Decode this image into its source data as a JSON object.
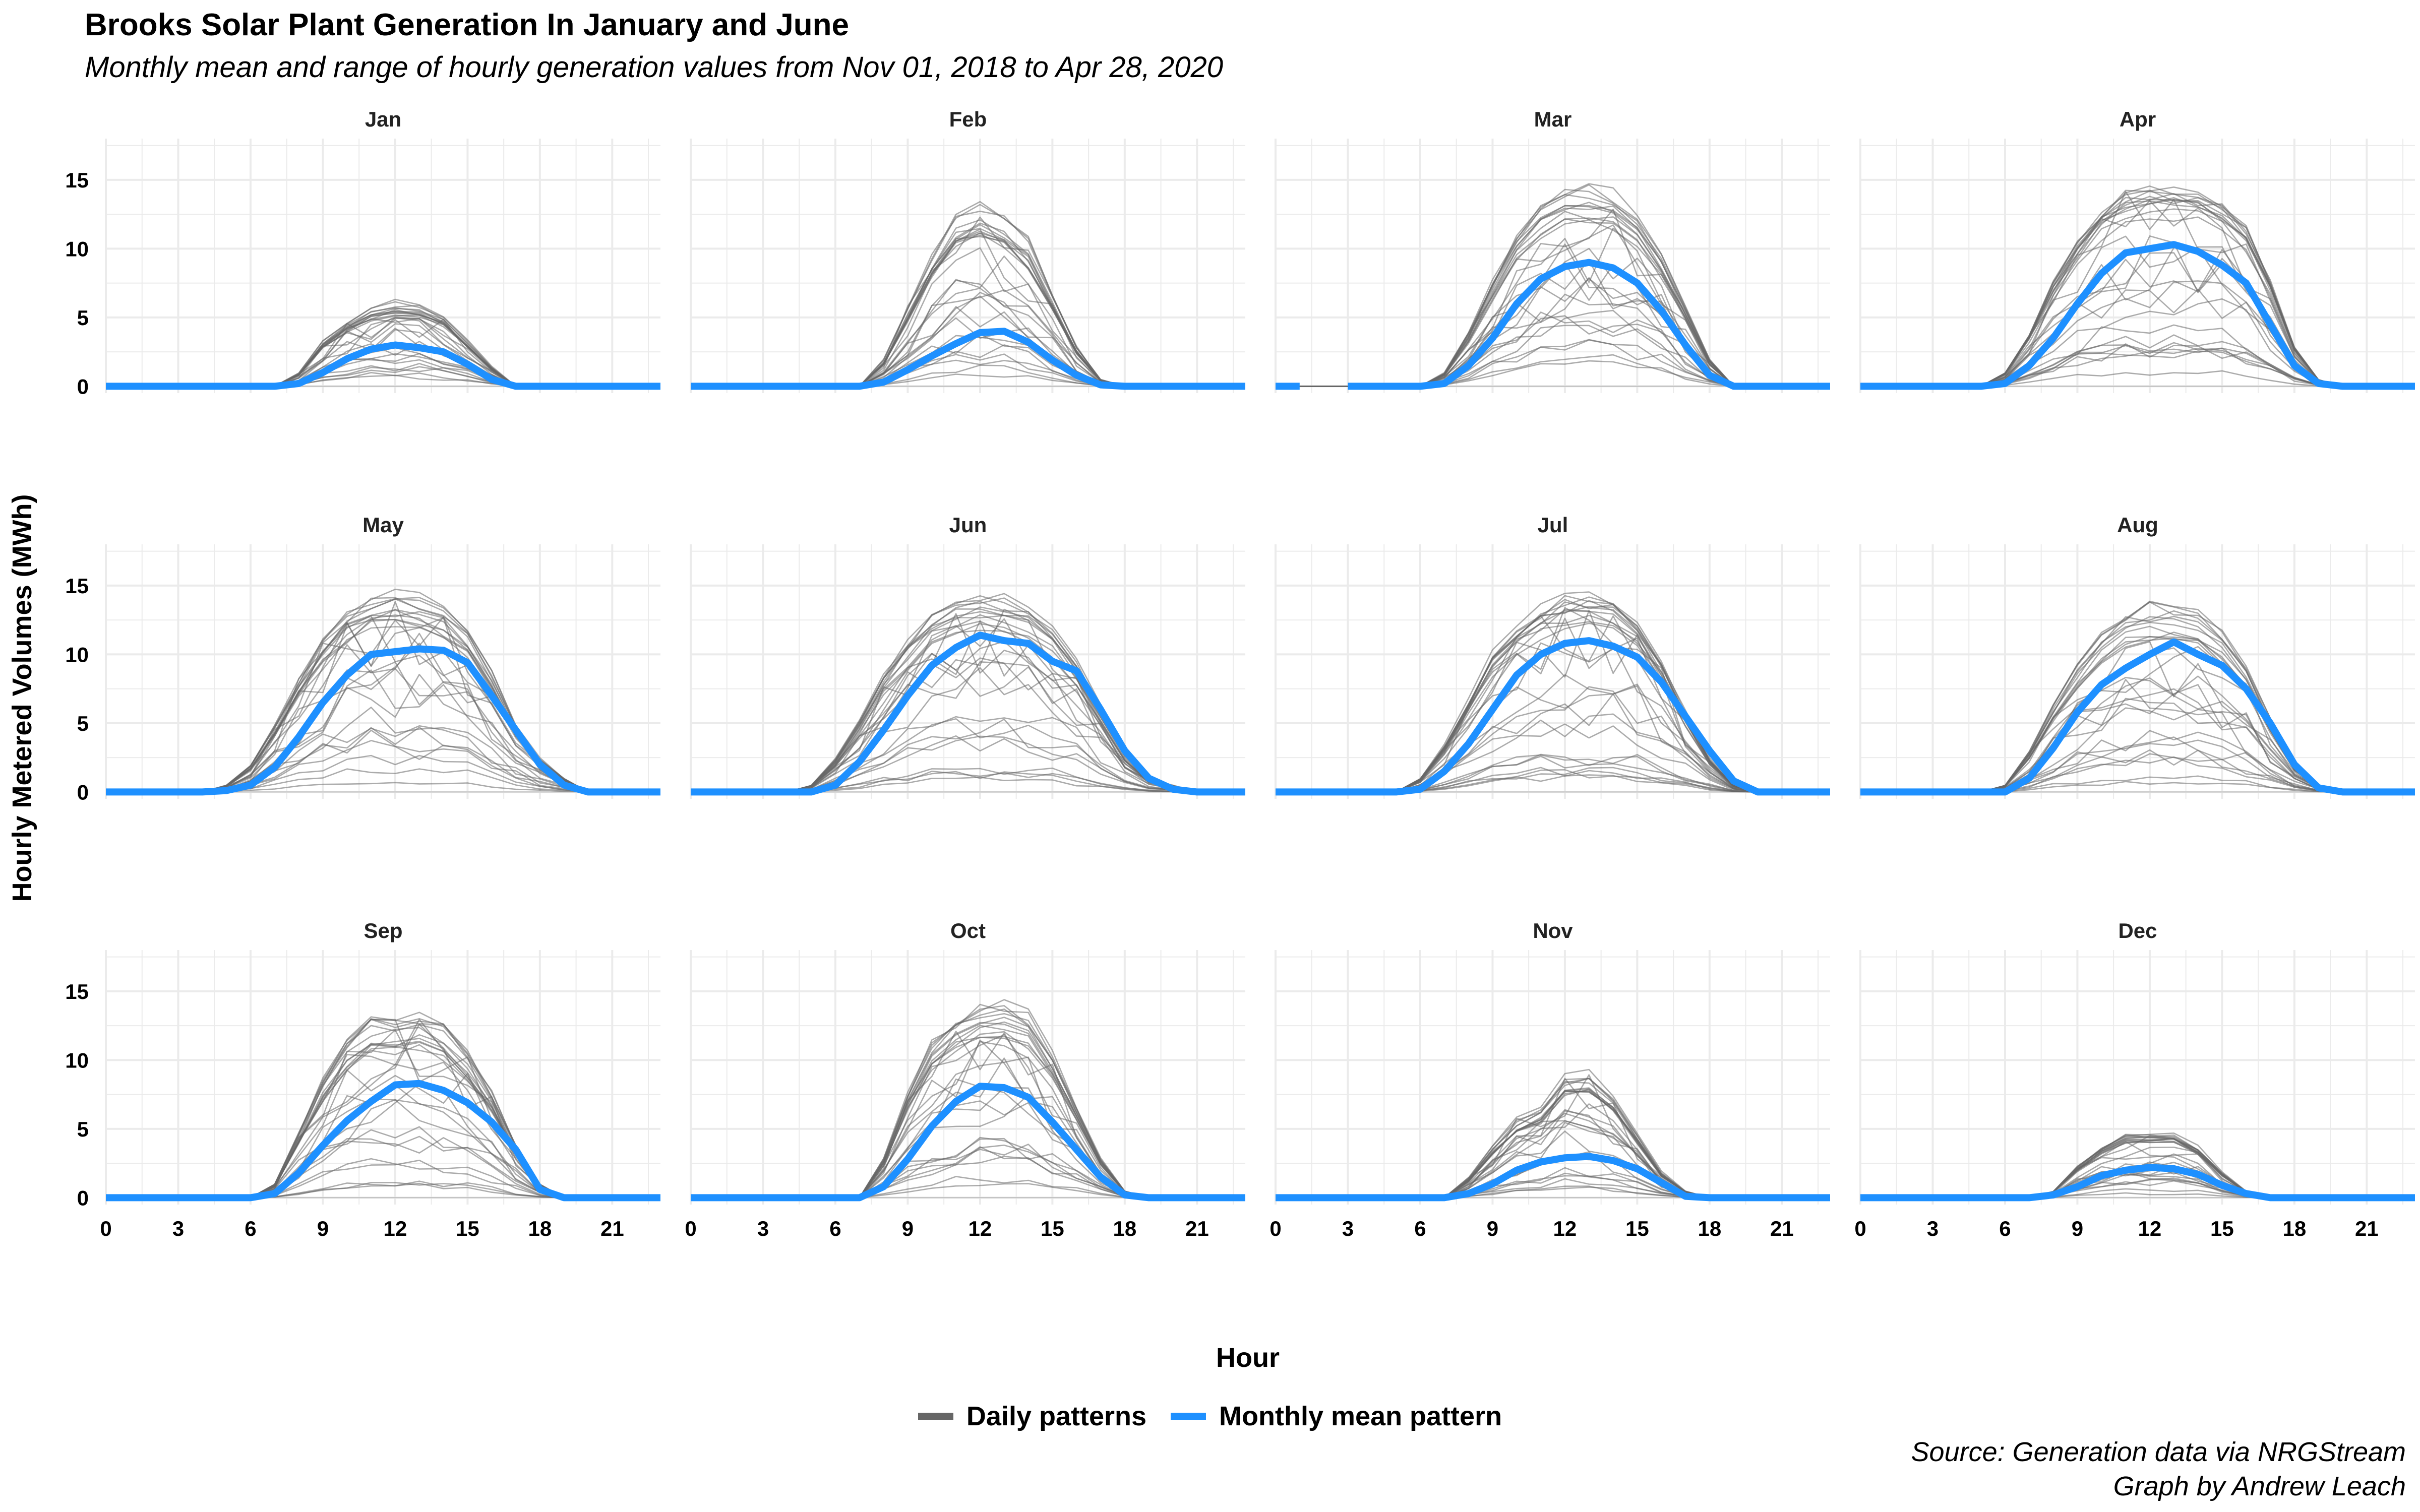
{
  "title": "Brooks Solar Plant Generation In January and June",
  "subtitle": "Monthly mean and range of hourly generation values from Nov 01, 2018 to Apr 28, 2020",
  "caption": [
    "Source: Generation data via NRGStream",
    "Graph by Andrew Leach"
  ],
  "colors": {
    "daily": "#666666",
    "mean": "#1e90ff",
    "grid": "#ebebeb",
    "zero": "#bbbbbb"
  },
  "legend": [
    {
      "label": "Daily patterns",
      "color": "#666666"
    },
    {
      "label": "Monthly mean pattern",
      "color": "#1e90ff"
    }
  ],
  "chart_data": {
    "type": "line",
    "facets": "3x4 small multiples, shared axes",
    "xlabel": "Hour",
    "ylabel": "Hourly Metered Volumes (MWh)",
    "xlim": [
      0,
      23
    ],
    "ylim": [
      -0.5,
      18
    ],
    "xticks": [
      0,
      3,
      6,
      9,
      12,
      15,
      18,
      21
    ],
    "yticks": [
      0,
      5,
      10,
      15
    ],
    "grid": true,
    "legend_position": "bottom",
    "x": [
      0,
      1,
      2,
      3,
      4,
      5,
      6,
      7,
      8,
      9,
      10,
      11,
      12,
      13,
      14,
      15,
      16,
      17,
      18,
      19,
      20,
      21,
      22,
      23
    ],
    "panels": [
      {
        "month": "Jan",
        "mean": [
          0,
          0,
          0,
          0,
          0,
          0,
          0,
          0,
          0.2,
          1,
          2,
          2.7,
          3,
          2.8,
          2.5,
          1.6,
          0.5,
          0,
          0,
          0,
          0,
          0,
          0,
          0
        ],
        "daily_max": [
          0,
          0,
          0,
          0,
          0,
          0,
          0,
          0,
          1,
          3.5,
          5,
          6,
          6.5,
          6.3,
          5.5,
          3.5,
          1.5,
          0,
          0,
          0,
          0,
          0,
          0,
          0
        ]
      },
      {
        "month": "Feb",
        "mean": [
          0,
          0,
          0,
          0,
          0,
          0,
          0,
          0,
          0.3,
          1.2,
          2.2,
          3.1,
          3.9,
          4,
          3.2,
          1.9,
          0.8,
          0.1,
          0,
          0,
          0,
          0,
          0,
          0
        ],
        "daily_max": [
          0,
          0,
          0,
          0,
          0,
          0,
          0,
          0,
          2,
          6,
          10,
          13,
          13.8,
          13,
          11,
          7,
          3,
          0.5,
          0,
          0,
          0,
          0,
          0,
          0
        ]
      },
      {
        "month": "Mar",
        "mean": [
          0,
          0,
          0,
          0,
          0,
          0,
          0,
          0.2,
          1.5,
          3.5,
          6,
          7.8,
          8.7,
          9,
          8.6,
          7.5,
          5.5,
          3,
          0.8,
          0,
          0,
          0,
          0,
          0
        ],
        "daily_max": [
          0,
          0,
          0,
          0,
          0,
          0,
          0,
          1,
          4,
          8,
          11.5,
          14,
          14.9,
          15,
          14.5,
          13,
          10,
          6,
          2,
          0,
          0,
          0,
          0,
          0
        ],
        "gap": [
          1,
          3
        ]
      },
      {
        "month": "Apr",
        "mean": [
          0,
          0,
          0,
          0,
          0,
          0,
          0.2,
          1.5,
          3.5,
          6,
          8.2,
          9.7,
          10,
          10.3,
          9.8,
          8.8,
          7.5,
          4.5,
          1.5,
          0.2,
          0,
          0,
          0,
          0
        ],
        "daily_max": [
          0,
          0,
          0,
          0,
          0,
          0,
          1,
          4,
          8,
          11,
          13.5,
          14.8,
          15,
          15,
          14.8,
          14,
          12,
          8,
          3,
          0.5,
          0,
          0,
          0,
          0
        ]
      },
      {
        "month": "May",
        "mean": [
          0,
          0,
          0,
          0,
          0,
          0.1,
          0.5,
          1.8,
          4,
          6.5,
          8.5,
          10,
          10.2,
          10.4,
          10.3,
          9.4,
          7,
          4.5,
          2,
          0.5,
          0,
          0,
          0,
          0
        ],
        "daily_max": [
          0,
          0,
          0,
          0,
          0,
          0.5,
          2,
          5,
          8.5,
          11.5,
          13.5,
          14.7,
          15,
          14.8,
          14,
          12,
          9,
          5,
          2.5,
          1,
          0,
          0,
          0,
          0
        ]
      },
      {
        "month": "Jun",
        "mean": [
          0,
          0,
          0,
          0,
          0,
          0,
          0.5,
          2.2,
          4.5,
          7,
          9.2,
          10.5,
          11.4,
          11,
          10.8,
          9.5,
          8.8,
          6,
          3,
          1,
          0.2,
          0,
          0,
          0
        ],
        "daily_max": [
          0,
          0,
          0,
          0,
          0,
          0.5,
          2.5,
          5.5,
          9,
          11.5,
          13.5,
          14.7,
          15,
          14.7,
          14,
          12.5,
          10,
          6.5,
          3,
          1,
          0.5,
          0,
          0,
          0
        ]
      },
      {
        "month": "Jul",
        "mean": [
          0,
          0,
          0,
          0,
          0,
          0,
          0.2,
          1.5,
          3.5,
          6,
          8.5,
          10,
          10.8,
          11,
          10.6,
          9.8,
          8,
          5.5,
          3,
          0.8,
          0,
          0,
          0,
          0
        ],
        "daily_max": [
          0,
          0,
          0,
          0,
          0,
          0,
          1,
          3.5,
          7,
          10.5,
          12.5,
          14,
          14.8,
          15,
          14.5,
          13,
          10,
          6,
          2.5,
          0.5,
          0,
          0,
          0,
          0
        ]
      },
      {
        "month": "Aug",
        "mean": [
          0,
          0,
          0,
          0,
          0,
          0,
          0,
          1,
          3.2,
          5.8,
          7.8,
          9,
          10,
          10.9,
          10,
          9.2,
          7.5,
          5,
          2,
          0.3,
          0,
          0,
          0,
          0
        ],
        "daily_max": [
          0,
          0,
          0,
          0,
          0,
          0,
          0.5,
          3,
          6.5,
          9.5,
          12,
          13.5,
          14,
          14,
          13.5,
          12,
          9.5,
          5.5,
          2,
          0.5,
          0,
          0,
          0,
          0
        ]
      },
      {
        "month": "Sep",
        "mean": [
          0,
          0,
          0,
          0,
          0,
          0,
          0,
          0.3,
          1.8,
          3.8,
          5.6,
          7,
          8.2,
          8.3,
          7.8,
          6.9,
          5.5,
          3.5,
          0.6,
          0,
          0,
          0,
          0,
          0
        ],
        "daily_max": [
          0,
          0,
          0,
          0,
          0,
          0,
          0,
          1,
          5,
          9,
          12,
          13.5,
          13.5,
          13.8,
          13,
          11,
          8,
          4,
          1,
          0,
          0,
          0,
          0,
          0
        ]
      },
      {
        "month": "Oct",
        "mean": [
          0,
          0,
          0,
          0,
          0,
          0,
          0,
          0,
          0.8,
          2.8,
          5.2,
          7,
          8.1,
          8,
          7.3,
          5.5,
          3.5,
          1.5,
          0.2,
          0,
          0,
          0,
          0,
          0
        ],
        "daily_max": [
          0,
          0,
          0,
          0,
          0,
          0,
          0,
          0,
          3,
          8,
          12,
          13.5,
          14.5,
          14.8,
          14,
          11,
          7,
          3,
          0.5,
          0,
          0,
          0,
          0,
          0
        ]
      },
      {
        "month": "Nov",
        "mean": [
          0,
          0,
          0,
          0,
          0,
          0,
          0,
          0,
          0.3,
          1,
          2,
          2.6,
          2.9,
          3,
          2.7,
          2.1,
          1.1,
          0.1,
          0,
          0,
          0,
          0,
          0,
          0
        ],
        "daily_max": [
          0,
          0,
          0,
          0,
          0,
          0,
          0,
          0,
          1.5,
          4,
          6,
          7,
          9.5,
          9.5,
          8,
          5,
          2,
          0.5,
          0,
          0,
          0,
          0,
          0,
          0
        ]
      },
      {
        "month": "Dec",
        "mean": [
          0,
          0,
          0,
          0,
          0,
          0,
          0,
          0,
          0.2,
          0.8,
          1.6,
          2,
          2.2,
          2.1,
          1.7,
          0.9,
          0.3,
          0,
          0,
          0,
          0,
          0,
          0,
          0
        ],
        "daily_max": [
          0,
          0,
          0,
          0,
          0,
          0,
          0,
          0,
          0.5,
          2.5,
          4,
          5,
          5,
          5,
          4,
          2,
          0.5,
          0,
          0,
          0,
          0,
          0,
          0,
          0
        ]
      }
    ]
  }
}
